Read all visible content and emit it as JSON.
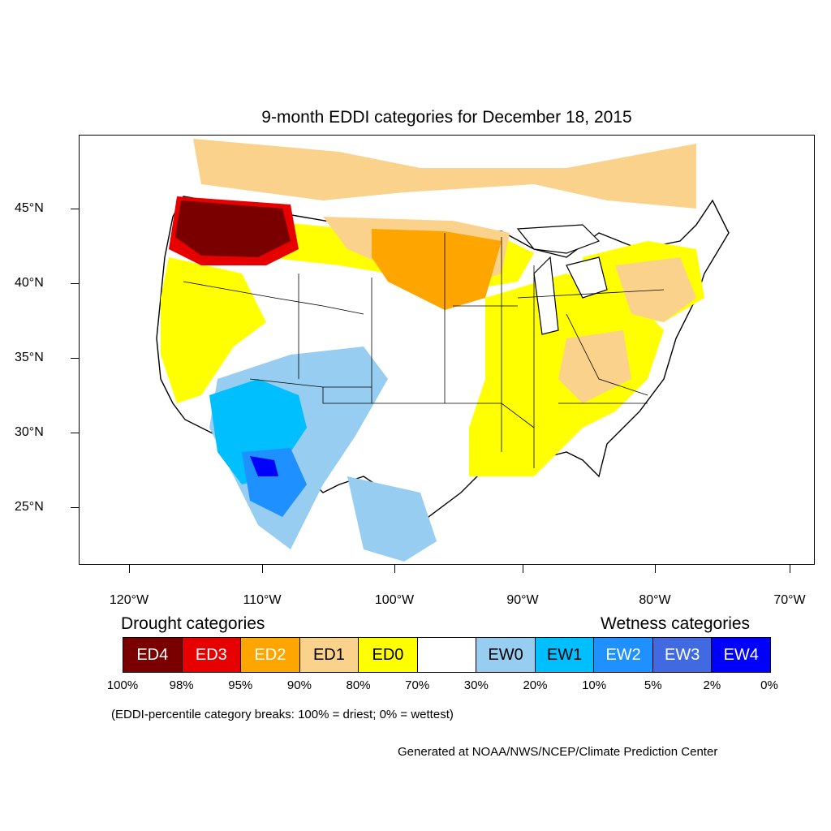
{
  "title": "9-month EDDI categories for December 18, 2015",
  "map": {
    "lat_labels": [
      "45°N",
      "40°N",
      "35°N",
      "30°N",
      "25°N"
    ],
    "lon_labels": [
      "120°W",
      "110°W",
      "100°W",
      "90°W",
      "80°W",
      "70°W"
    ]
  },
  "legend": {
    "drought_heading": "Drought categories",
    "wetness_heading": "Wetness categories",
    "categories": [
      {
        "label": "ED4",
        "color": "#7a0000",
        "text_color": "#ffffff"
      },
      {
        "label": "ED3",
        "color": "#e60000",
        "text_color": "#ffffff"
      },
      {
        "label": "ED2",
        "color": "#ffa500",
        "text_color": "#ffffff"
      },
      {
        "label": "ED1",
        "color": "#fbd28c",
        "text_color": "#000000"
      },
      {
        "label": "ED0",
        "color": "#ffff00",
        "text_color": "#000000"
      },
      {
        "label": "",
        "color": "#ffffff",
        "text_color": "#000000"
      },
      {
        "label": "EW0",
        "color": "#96cdf0",
        "text_color": "#000000"
      },
      {
        "label": "EW1",
        "color": "#00bfff",
        "text_color": "#000000"
      },
      {
        "label": "EW2",
        "color": "#1e90ff",
        "text_color": "#ffffff"
      },
      {
        "label": "EW3",
        "color": "#4169e1",
        "text_color": "#ffffff"
      },
      {
        "label": "EW4",
        "color": "#0000ff",
        "text_color": "#ffffff"
      }
    ],
    "breaks": [
      "100%",
      "98%",
      "95%",
      "90%",
      "80%",
      "70%",
      "30%",
      "20%",
      "10%",
      "5%",
      "2%",
      "0%"
    ]
  },
  "note": "(EDDI-percentile category breaks: 100% = driest; 0% = wettest)",
  "credit": "Generated at NOAA/NWS/NCEP/Climate Prediction Center"
}
